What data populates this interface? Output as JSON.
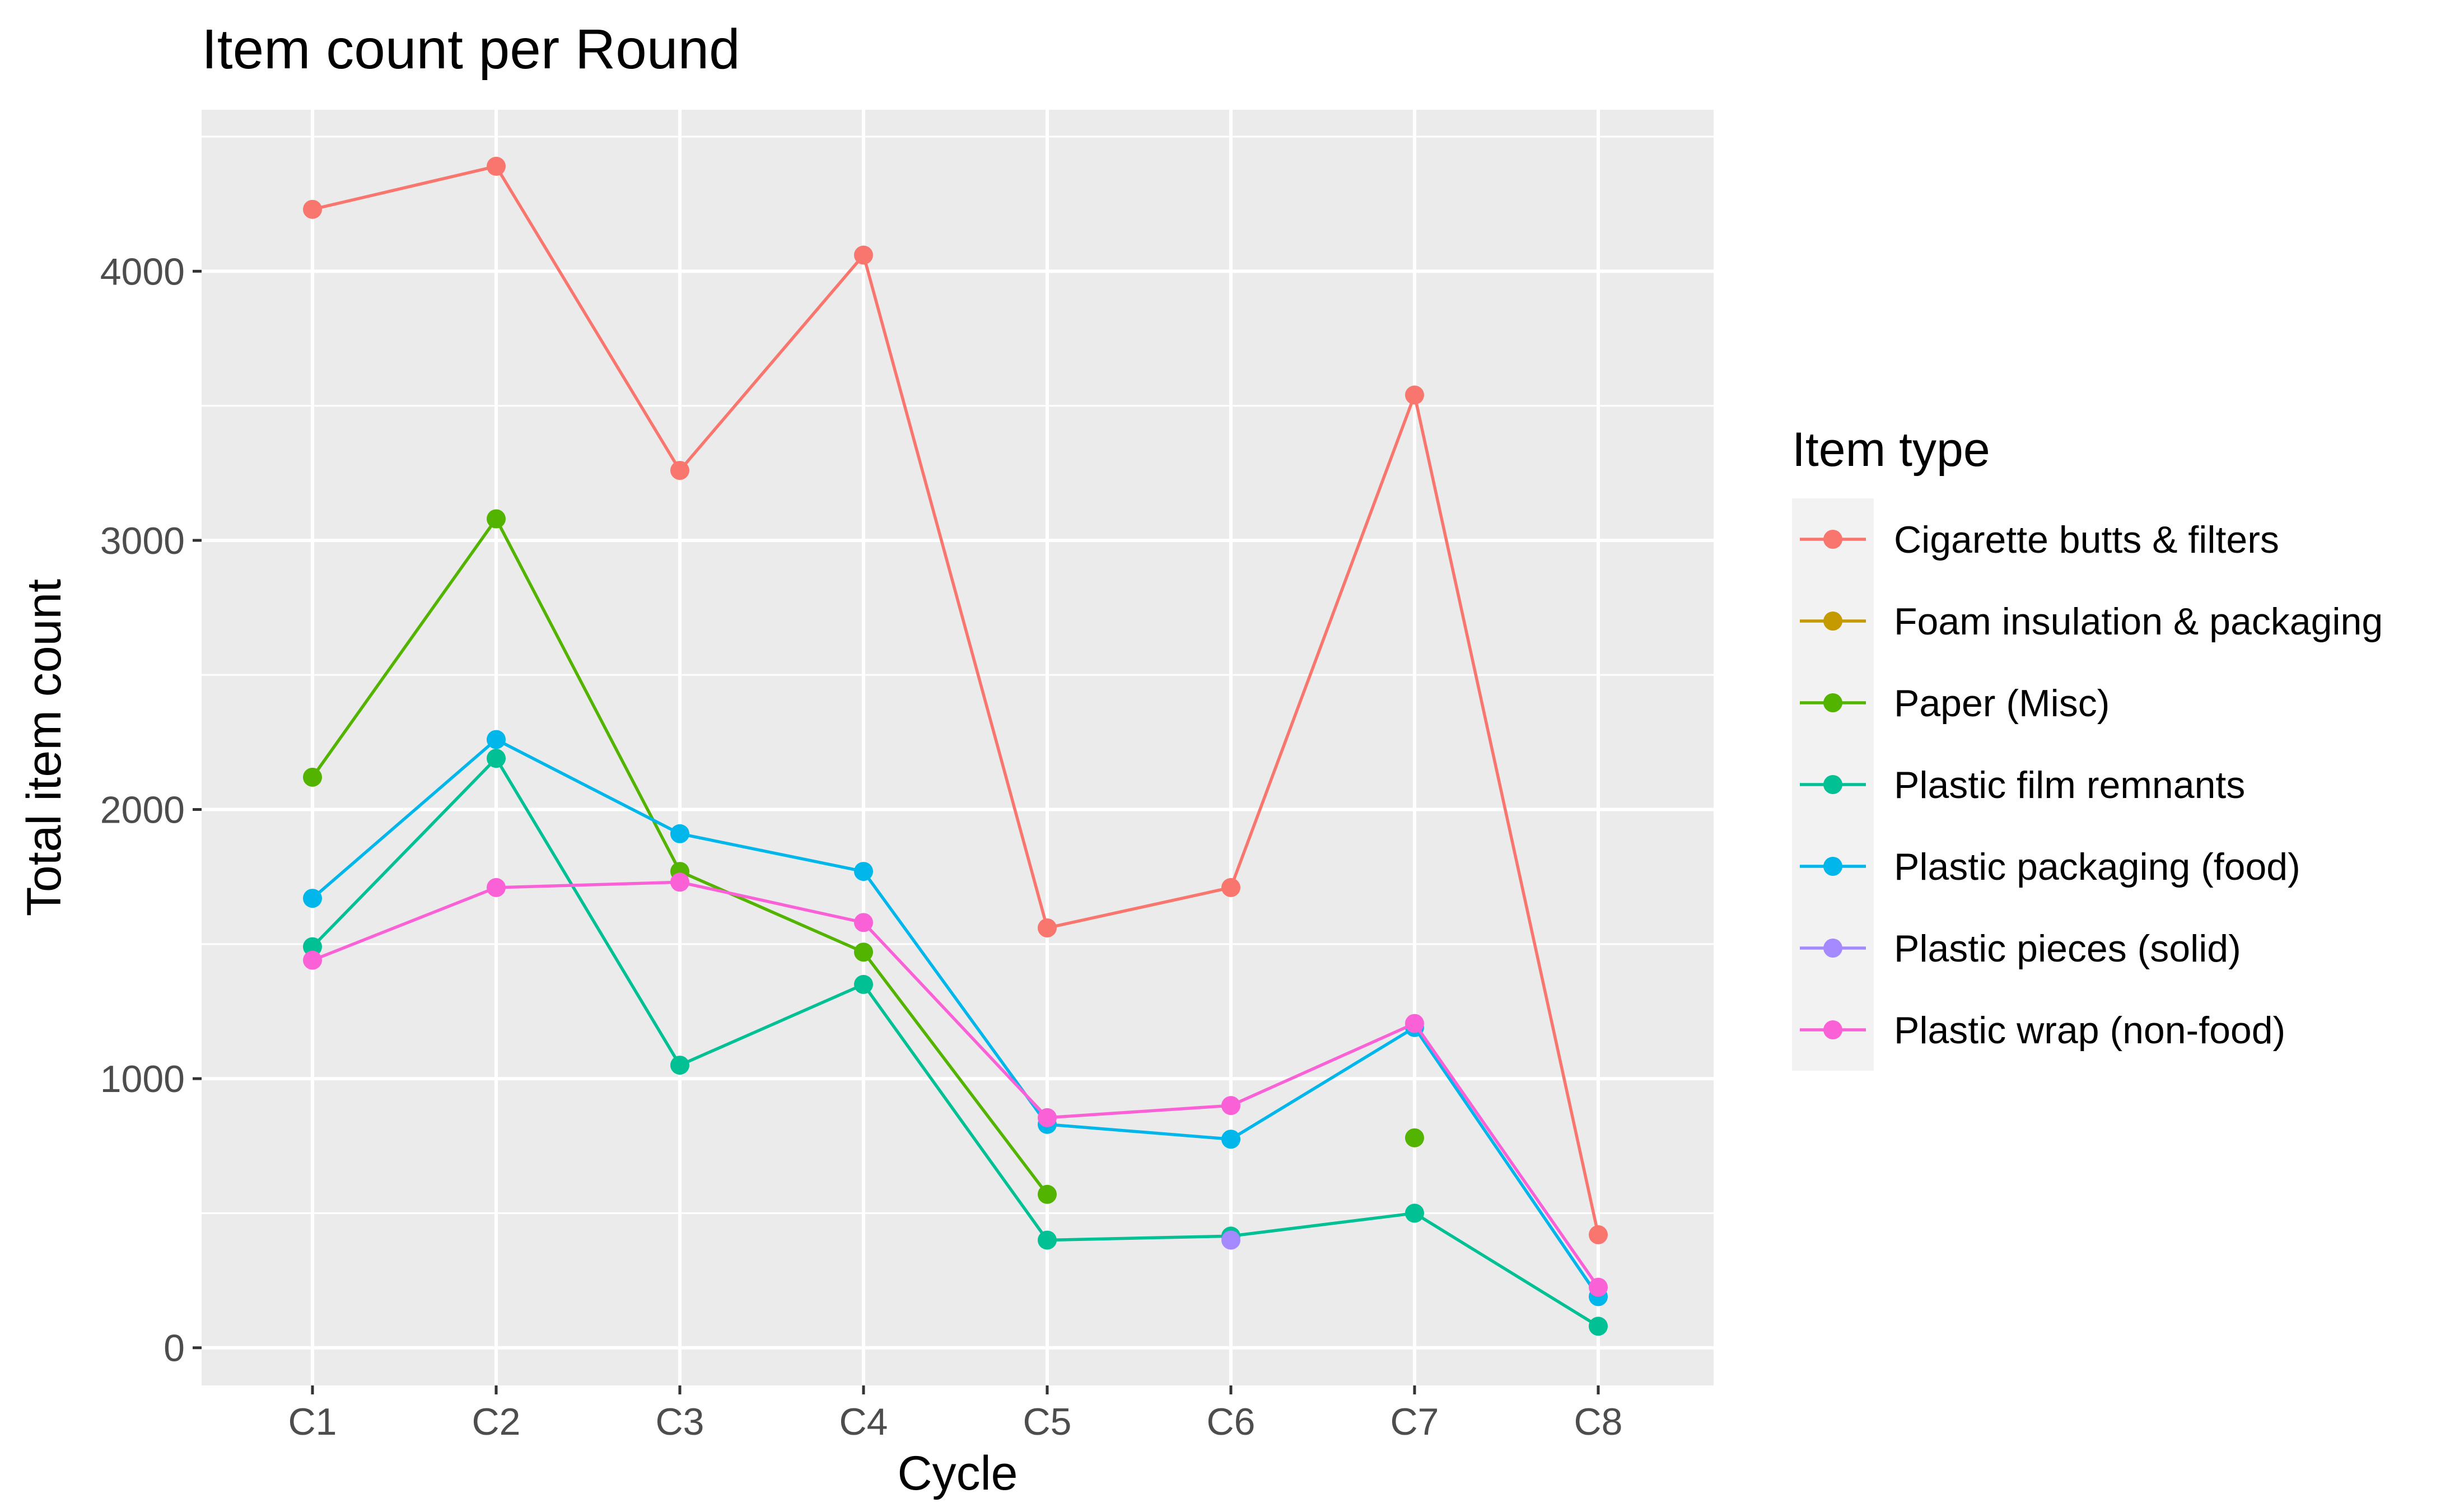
{
  "chart_data": {
    "type": "line",
    "title": "Item count per Round",
    "xlabel": "Cycle",
    "ylabel": "Total item count",
    "categories": [
      "C1",
      "C2",
      "C3",
      "C4",
      "C5",
      "C6",
      "C7",
      "C8"
    ],
    "ylim": [
      -140,
      4600
    ],
    "yticks": [
      0,
      1000,
      2000,
      3000,
      4000
    ],
    "grid": true,
    "legend": {
      "title": "Item type",
      "position": "right"
    },
    "series": [
      {
        "name": "Cigarette butts & filters",
        "color": "#F8766D",
        "values": [
          4230,
          4390,
          3260,
          4060,
          1560,
          1710,
          3540,
          420
        ]
      },
      {
        "name": "Foam insulation & packaging",
        "color": "#C49A00",
        "values": [
          null,
          null,
          null,
          null,
          null,
          null,
          null,
          null
        ]
      },
      {
        "name": "Paper (Misc)",
        "color": "#53B400",
        "values": [
          2120,
          3080,
          1770,
          1470,
          570,
          null,
          780,
          null
        ]
      },
      {
        "name": "Plastic film remnants",
        "color": "#00C094",
        "values": [
          1490,
          2190,
          1050,
          1350,
          400,
          415,
          500,
          80
        ]
      },
      {
        "name": "Plastic packaging (food)",
        "color": "#00B6EB",
        "values": [
          1670,
          2260,
          1910,
          1770,
          830,
          775,
          1190,
          190
        ]
      },
      {
        "name": "Plastic pieces (solid)",
        "color": "#A58AFF",
        "values": [
          null,
          null,
          null,
          null,
          null,
          400,
          null,
          null
        ]
      },
      {
        "name": "Plastic wrap (non-food)",
        "color": "#FB61D7",
        "values": [
          1440,
          1710,
          1730,
          1580,
          855,
          900,
          1205,
          225
        ]
      }
    ]
  }
}
